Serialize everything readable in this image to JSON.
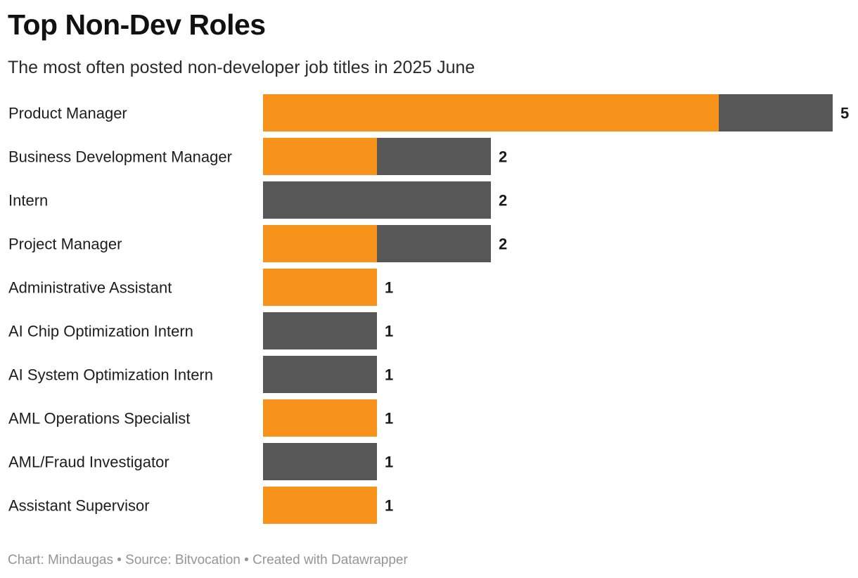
{
  "page": {
    "footer": "Chart: Mindaugas • Source: Bitvocation • Created with Datawrapper"
  },
  "colors": {
    "remote": "#f7931a",
    "other": "#575757",
    "label": "#1d1d1d"
  },
  "chart_data": {
    "type": "bar",
    "orientation": "horizontal",
    "stacked": true,
    "title": "Top Non-Dev Roles",
    "subtitle": "The most often posted non-developer job titles in 2025 June",
    "xlabel": "",
    "ylabel": "",
    "xlim": [
      0,
      5
    ],
    "grid": false,
    "categories": [
      "Product Manager",
      "Business Development Manager",
      "Intern",
      "Project Manager",
      "Administrative Assistant",
      "AI Chip Optimization Intern",
      "AI System Optimization Intern",
      "AML Operations Specialist",
      "AML/Fraud Investigator",
      "Assistant Supervisor"
    ],
    "series": [
      {
        "name": "orange",
        "color": "#f7931a",
        "values": [
          4,
          1,
          0,
          1,
          1,
          0,
          0,
          1,
          0,
          1
        ]
      },
      {
        "name": "grey",
        "color": "#575757",
        "values": [
          1,
          1,
          2,
          1,
          0,
          1,
          1,
          0,
          1,
          0
        ]
      }
    ],
    "totals": [
      5,
      2,
      2,
      2,
      1,
      1,
      1,
      1,
      1,
      1
    ]
  }
}
